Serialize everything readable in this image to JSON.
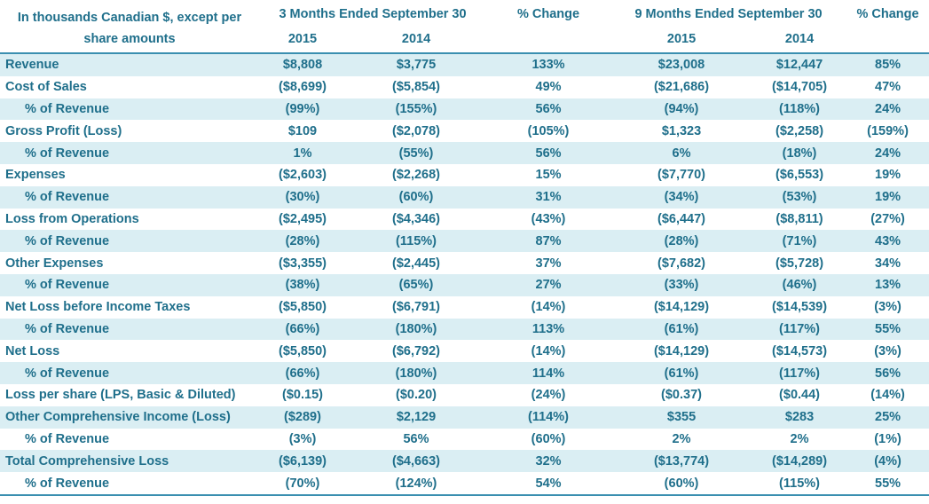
{
  "header": {
    "label_line1": "In thousands Canadian $, except per",
    "label_line2": "share amounts",
    "group3m": "3 Months Ended September 30",
    "group9m": "9 Months Ended September 30",
    "pct_change": "% Change",
    "y2015": "2015",
    "y2014": "2014"
  },
  "rows": [
    {
      "label": "Revenue",
      "a": "$8,808",
      "b": "$3,775",
      "c": "133%",
      "d": "$23,008",
      "e": "$12,447",
      "f": "85%"
    },
    {
      "label": "Cost of Sales",
      "a": "($8,699)",
      "b": "($5,854)",
      "c": "49%",
      "d": "($21,686)",
      "e": "($14,705)",
      "f": "47%"
    },
    {
      "label": "% of Revenue",
      "a": "(99%)",
      "b": "(155%)",
      "c": "56%",
      "d": "(94%)",
      "e": "(118%)",
      "f": "24%"
    },
    {
      "label": "Gross Profit (Loss)",
      "a": "$109",
      "b": "($2,078)",
      "c": "(105%)",
      "d": "$1,323",
      "e": "($2,258)",
      "f": "(159%)"
    },
    {
      "label": "% of Revenue",
      "a": "1%",
      "b": "(55%)",
      "c": "56%",
      "d": "6%",
      "e": "(18%)",
      "f": "24%"
    },
    {
      "label": "Expenses",
      "a": "($2,603)",
      "b": "($2,268)",
      "c": "15%",
      "d": "($7,770)",
      "e": "($6,553)",
      "f": "19%"
    },
    {
      "label": "% of Revenue",
      "a": "(30%)",
      "b": "(60%)",
      "c": "31%",
      "d": "(34%)",
      "e": "(53%)",
      "f": "19%"
    },
    {
      "label": "Loss from Operations",
      "a": "($2,495)",
      "b": "($4,346)",
      "c": "(43%)",
      "d": "($6,447)",
      "e": "($8,811)",
      "f": "(27%)"
    },
    {
      "label": "% of Revenue",
      "a": "(28%)",
      "b": "(115%)",
      "c": "87%",
      "d": "(28%)",
      "e": "(71%)",
      "f": "43%"
    },
    {
      "label": "Other Expenses",
      "a": "($3,355)",
      "b": "($2,445)",
      "c": "37%",
      "d": "($7,682)",
      "e": "($5,728)",
      "f": "34%"
    },
    {
      "label": "% of Revenue",
      "a": "(38%)",
      "b": "(65%)",
      "c": "27%",
      "d": "(33%)",
      "e": "(46%)",
      "f": "13%"
    },
    {
      "label": "Net Loss before Income Taxes",
      "a": "($5,850)",
      "b": "($6,791)",
      "c": "(14%)",
      "d": "($14,129)",
      "e": "($14,539)",
      "f": "(3%)"
    },
    {
      "label": "% of Revenue",
      "a": "(66%)",
      "b": "(180%)",
      "c": "113%",
      "d": "(61%)",
      "e": "(117%)",
      "f": "55%"
    },
    {
      "label": "Net Loss",
      "a": "($5,850)",
      "b": "($6,792)",
      "c": "(14%)",
      "d": "($14,129)",
      "e": "($14,573)",
      "f": "(3%)"
    },
    {
      "label": "% of Revenue",
      "a": "(66%)",
      "b": "(180%)",
      "c": "114%",
      "d": "(61%)",
      "e": "(117%)",
      "f": "56%"
    },
    {
      "label": "Loss per share (LPS, Basic & Diluted)",
      "a": "($0.15)",
      "b": "($0.20)",
      "c": "(24%)",
      "d": "($0.37)",
      "e": "($0.44)",
      "f": "(14%)"
    },
    {
      "label": "Other Comprehensive Income (Loss)",
      "a": "($289)",
      "b": "$2,129",
      "c": "(114%)",
      "d": "$355",
      "e": "$283",
      "f": "25%"
    },
    {
      "label": "% of Revenue",
      "a": "(3%)",
      "b": "56%",
      "c": "(60%)",
      "d": "2%",
      "e": "2%",
      "f": "(1%)"
    },
    {
      "label": "Total Comprehensive Loss",
      "a": "($6,139)",
      "b": "($4,663)",
      "c": "32%",
      "d": "($13,774)",
      "e": "($14,289)",
      "f": "(4%)"
    },
    {
      "label": "% of Revenue",
      "a": "(70%)",
      "b": "(124%)",
      "c": "54%",
      "d": "(60%)",
      "e": "(115%)",
      "f": "55%"
    }
  ],
  "colors": {
    "text": "#1f6f8b",
    "shade": "#daeef3",
    "rule": "#3a8fb0"
  }
}
